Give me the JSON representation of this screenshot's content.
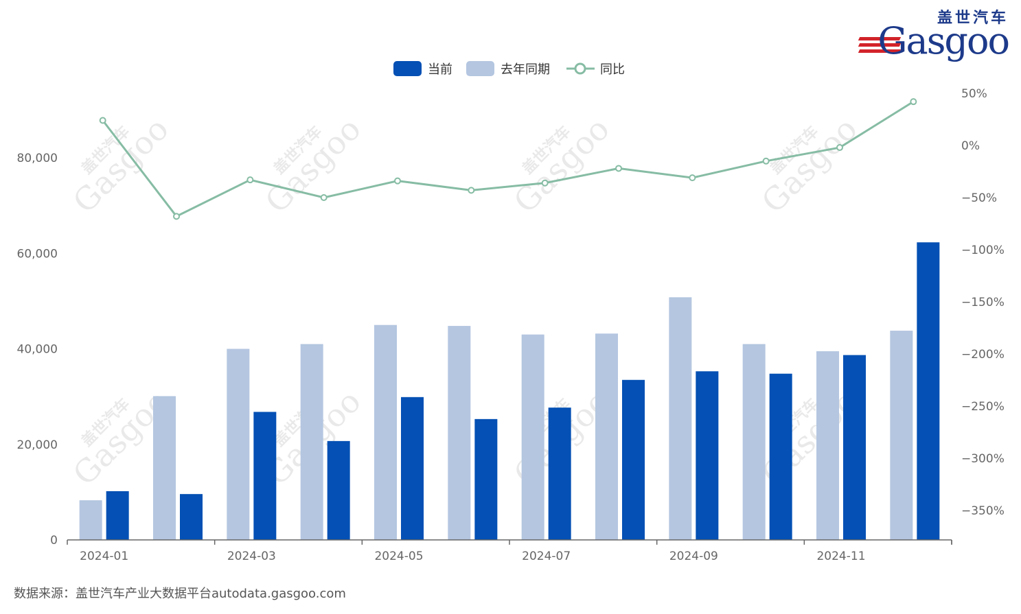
{
  "brand": {
    "name_cn": "盖世汽车",
    "name_en": "Gasgoo",
    "watermark_cn": "盖世汽车",
    "watermark_en": "Gasgoo"
  },
  "source": "数据来源：盖世汽车产业大数据平台autodata.gasgoo.com",
  "colors": {
    "current": "#0450b4",
    "last_year": "#b4c6e0",
    "yoy": "#86bca4",
    "axis": "#666666"
  },
  "chart_data": {
    "type": "bar",
    "categories": [
      "2024-01",
      "2024-02",
      "2024-03",
      "2024-04",
      "2024-05",
      "2024-06",
      "2024-07",
      "2024-08",
      "2024-09",
      "2024-10",
      "2024-11",
      "2024-12"
    ],
    "x_tick_labels": [
      "2024-01",
      "2024-03",
      "2024-05",
      "2024-07",
      "2024-09",
      "2024-11"
    ],
    "series": [
      {
        "name": "当前",
        "type": "bar",
        "color": "#0450b4",
        "values": [
          10200,
          9600,
          26800,
          20700,
          29900,
          25300,
          27700,
          33500,
          35300,
          34800,
          38700,
          62300
        ]
      },
      {
        "name": "去年同期",
        "type": "bar",
        "color": "#b4c6e0",
        "values": [
          8300,
          30100,
          40000,
          41000,
          45000,
          44800,
          43000,
          43200,
          50800,
          41000,
          39500,
          43800
        ]
      },
      {
        "name": "同比",
        "type": "line",
        "color": "#86bca4",
        "axis": "right",
        "values": [
          24,
          -68,
          -33,
          -50,
          -34,
          -43,
          -36,
          -22,
          -31,
          -15,
          -2,
          42
        ]
      }
    ],
    "y_left": {
      "min": 0,
      "max": 80000,
      "ticks": [
        "0",
        "20,000",
        "40,000",
        "60,000",
        "80,000"
      ]
    },
    "y_right": {
      "min": -350,
      "max": 50,
      "ticks": [
        "50%",
        "0%",
        "−50%",
        "−100%",
        "−150%",
        "−200%",
        "−250%",
        "−300%",
        "−350%"
      ]
    },
    "legend": {
      "placement": "top-center",
      "items": [
        "当前",
        "去年同期",
        "同比"
      ]
    }
  }
}
